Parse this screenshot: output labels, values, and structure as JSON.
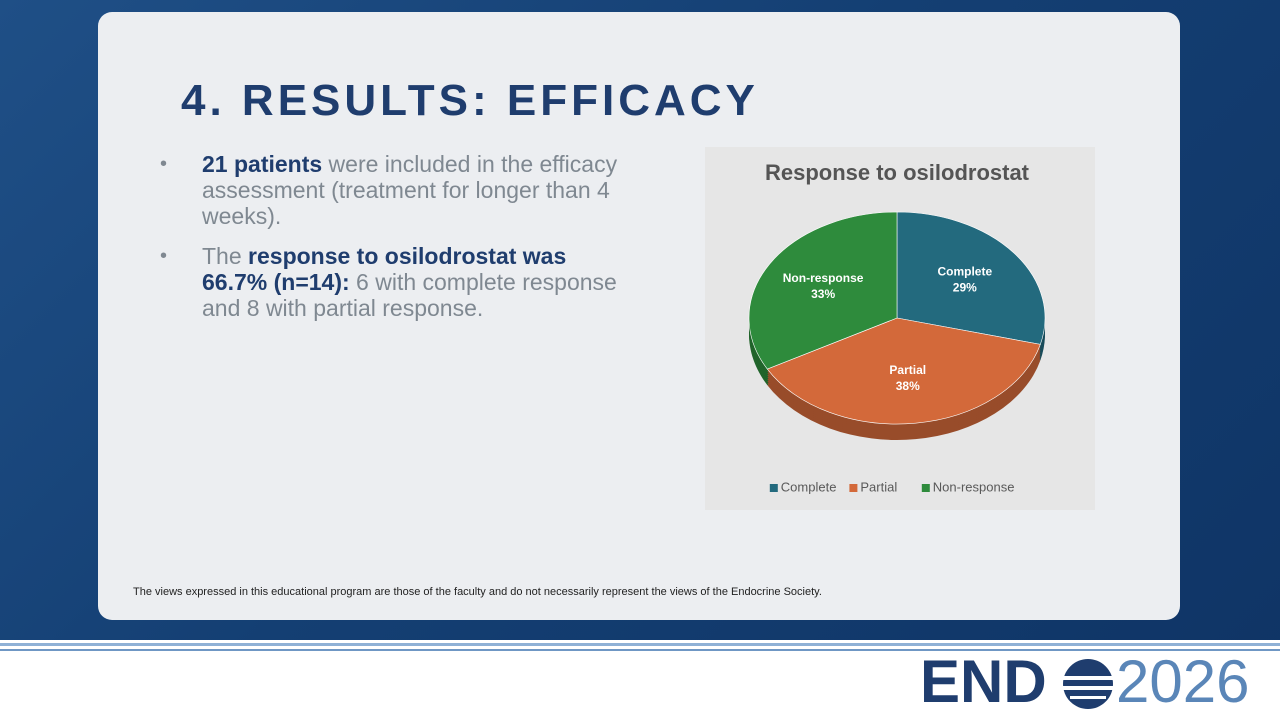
{
  "title": "4. RESULTS: EFFICACY",
  "bullets": [
    [
      {
        "text": "21 patients",
        "bold": true
      },
      {
        "text": " were included in the efficacy assessment (treatment for longer than 4 weeks).",
        "bold": false
      }
    ],
    [
      {
        "text": "The ",
        "bold": false
      },
      {
        "text": "response to osilodrostat was 66.7% (n=14):",
        "bold": true
      },
      {
        "text": " 6 with complete response and 8 with partial response.",
        "bold": false
      }
    ]
  ],
  "footer_note": "The views expressed in this educational program are those of the faculty and do not necessarily represent the views of the Endocrine Society.",
  "logo": {
    "left": "END",
    "right": "2026"
  },
  "chart_data": {
    "type": "pie",
    "title": "Response to osilodrostat",
    "categories": [
      "Complete",
      "Partial",
      "Non-response"
    ],
    "values": [
      29,
      38,
      33
    ],
    "value_labels": [
      "29%",
      "38%",
      "33%"
    ],
    "colors": [
      "#236a7e",
      "#d3693a",
      "#2e8b3c"
    ],
    "legend": "bottom"
  }
}
